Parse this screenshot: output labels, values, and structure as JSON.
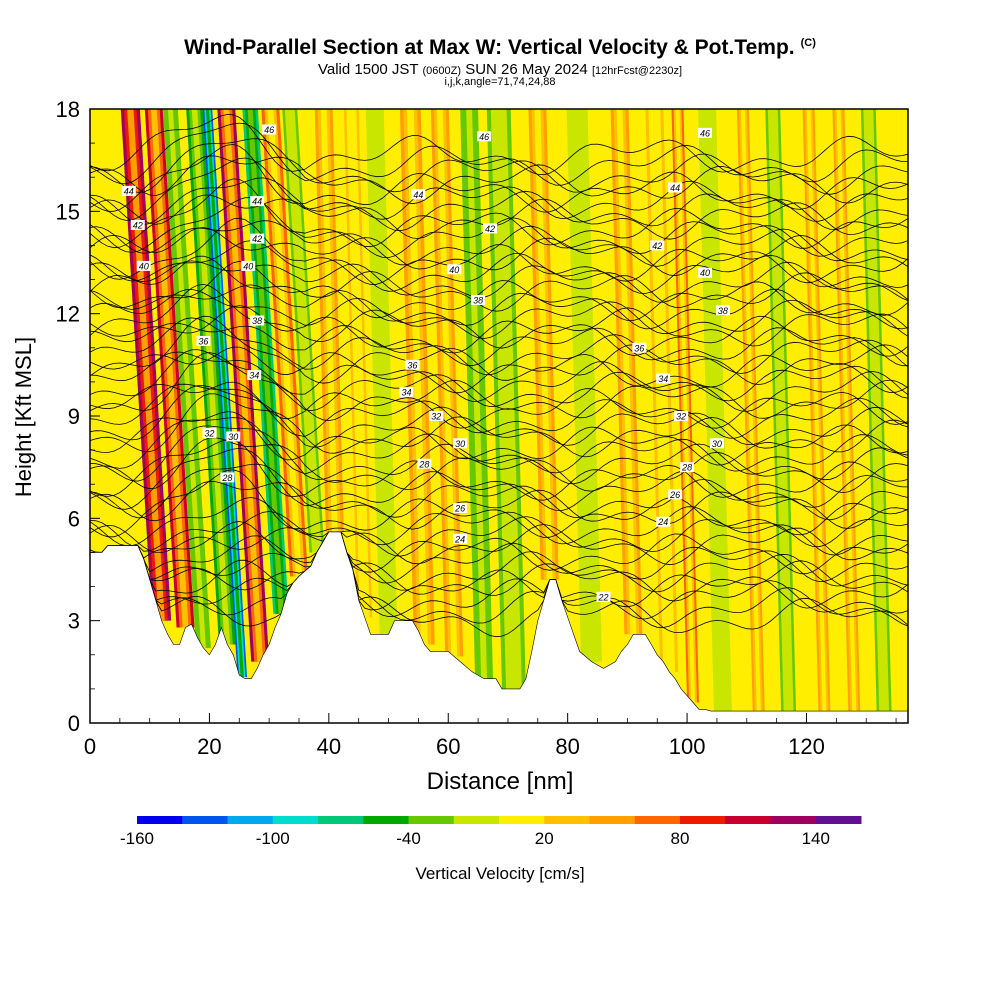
{
  "title": "Wind-Parallel Section at Max W: Vertical Velocity & Pot.Temp.",
  "copyright_mark": "(C)",
  "subtitle": {
    "valid_prefix": "Valid 1500 JST",
    "utc": "(0600Z)",
    "date": "SUN 26 May 2024",
    "forecast": "[12hrFcst@2230z]"
  },
  "indices": "i,j,k,angle=71,74,24,88",
  "chart_data": {
    "type": "heatmap",
    "xlabel": "Distance [nm]",
    "ylabel": "Height [Kft MSL]",
    "xlim": [
      0,
      137
    ],
    "ylim": [
      0,
      18
    ],
    "xticks": [
      0,
      20,
      40,
      60,
      80,
      100,
      120
    ],
    "yticks": [
      0,
      3,
      6,
      9,
      12,
      15,
      18
    ],
    "terrain_kft": [
      [
        0,
        5.0
      ],
      [
        2,
        5.0
      ],
      [
        3,
        5.2
      ],
      [
        8,
        5.2
      ],
      [
        9,
        4.8
      ],
      [
        10,
        4.2
      ],
      [
        11,
        3.6
      ],
      [
        12,
        3.0
      ],
      [
        13,
        2.6
      ],
      [
        14,
        2.3
      ],
      [
        15,
        2.3
      ],
      [
        16,
        2.8
      ],
      [
        17,
        2.9
      ],
      [
        18,
        2.5
      ],
      [
        19,
        2.2
      ],
      [
        20,
        2.0
      ],
      [
        21,
        2.3
      ],
      [
        22,
        2.8
      ],
      [
        23,
        2.3
      ],
      [
        24,
        2.0
      ],
      [
        25,
        1.4
      ],
      [
        26,
        1.3
      ],
      [
        27,
        1.3
      ],
      [
        28,
        1.6
      ],
      [
        29,
        2.0
      ],
      [
        30,
        2.3
      ],
      [
        31,
        2.8
      ],
      [
        32,
        3.2
      ],
      [
        33,
        3.8
      ],
      [
        34,
        4.1
      ],
      [
        35,
        4.3
      ],
      [
        37,
        4.6
      ],
      [
        38,
        5.0
      ],
      [
        39,
        5.3
      ],
      [
        40,
        5.6
      ],
      [
        42,
        5.6
      ],
      [
        43,
        5.0
      ],
      [
        44,
        4.5
      ],
      [
        45,
        3.6
      ],
      [
        46,
        3.1
      ],
      [
        47,
        2.6
      ],
      [
        50,
        2.6
      ],
      [
        51,
        3.0
      ],
      [
        54,
        3.0
      ],
      [
        55,
        2.7
      ],
      [
        56,
        2.3
      ],
      [
        57,
        2.1
      ],
      [
        60,
        2.1
      ],
      [
        62,
        1.8
      ],
      [
        64,
        1.5
      ],
      [
        66,
        1.3
      ],
      [
        68,
        1.3
      ],
      [
        69,
        1.0
      ],
      [
        72,
        1.0
      ],
      [
        73,
        1.3
      ],
      [
        74,
        2.1
      ],
      [
        75,
        3.0
      ],
      [
        76,
        3.6
      ],
      [
        77,
        4.2
      ],
      [
        78,
        4.2
      ],
      [
        79,
        3.6
      ],
      [
        80,
        3.1
      ],
      [
        81,
        2.6
      ],
      [
        82,
        2.1
      ],
      [
        84,
        1.8
      ],
      [
        86,
        1.6
      ],
      [
        88,
        1.8
      ],
      [
        89,
        2.1
      ],
      [
        90,
        2.3
      ],
      [
        91,
        2.6
      ],
      [
        93,
        2.6
      ],
      [
        94,
        2.3
      ],
      [
        95,
        2.0
      ],
      [
        96,
        1.8
      ],
      [
        97,
        1.5
      ],
      [
        98,
        1.3
      ],
      [
        99,
        1.0
      ],
      [
        100,
        0.8
      ],
      [
        101,
        0.6
      ],
      [
        102,
        0.4
      ],
      [
        103,
        0.4
      ],
      [
        104,
        0.35
      ],
      [
        137,
        0.35
      ]
    ],
    "velocity_bands": [
      {
        "x": 12,
        "w": 3.2,
        "v": 130
      },
      {
        "x": 16,
        "w": 3.0,
        "v": 110
      },
      {
        "x": 19,
        "w": 2.5,
        "v": -40
      },
      {
        "x": 23,
        "w": 2.8,
        "v": -60
      },
      {
        "x": 25.5,
        "w": 1.6,
        "v": -140
      },
      {
        "x": 28.5,
        "w": 3.0,
        "v": 120
      },
      {
        "x": 32,
        "w": 2.6,
        "v": -80
      },
      {
        "x": 35,
        "w": 3.0,
        "v": 60
      },
      {
        "x": 38,
        "w": 2.5,
        "v": -30
      },
      {
        "x": 41,
        "w": 3.0,
        "v": 50
      },
      {
        "x": 46,
        "w": 2.5,
        "v": 30
      },
      {
        "x": 50,
        "w": 3.0,
        "v": -20
      },
      {
        "x": 56,
        "w": 3.5,
        "v": 40
      },
      {
        "x": 61,
        "w": 3.0,
        "v": 50
      },
      {
        "x": 66,
        "w": 3.0,
        "v": -40
      },
      {
        "x": 71,
        "w": 4.0,
        "v": -30
      },
      {
        "x": 77,
        "w": 3.0,
        "v": 40
      },
      {
        "x": 84,
        "w": 3.5,
        "v": -20
      },
      {
        "x": 91,
        "w": 3.0,
        "v": 40
      },
      {
        "x": 97,
        "w": 3.0,
        "v": 30
      },
      {
        "x": 101,
        "w": 2.0,
        "v": 60
      },
      {
        "x": 106,
        "w": 3.0,
        "v": -20
      },
      {
        "x": 112,
        "w": 2.0,
        "v": 40
      },
      {
        "x": 117,
        "w": 2.5,
        "v": -30
      },
      {
        "x": 123,
        "w": 2.0,
        "v": 40
      },
      {
        "x": 128,
        "w": 2.0,
        "v": 40
      },
      {
        "x": 133,
        "w": 2.5,
        "v": -30
      }
    ],
    "theta_levels": [
      22,
      24,
      26,
      28,
      30,
      32,
      34,
      36,
      38,
      40,
      42,
      44,
      46
    ],
    "theta_labels": [
      {
        "text": "22",
        "x": 86,
        "y": 3.7
      },
      {
        "text": "24",
        "x": 62,
        "y": 5.4
      },
      {
        "text": "24",
        "x": 96,
        "y": 5.9
      },
      {
        "text": "26",
        "x": 62,
        "y": 6.3
      },
      {
        "text": "26",
        "x": 98,
        "y": 6.7
      },
      {
        "text": "28",
        "x": 23,
        "y": 7.2
      },
      {
        "text": "28",
        "x": 56,
        "y": 7.6
      },
      {
        "text": "28",
        "x": 100,
        "y": 7.5
      },
      {
        "text": "30",
        "x": 24,
        "y": 8.4
      },
      {
        "text": "30",
        "x": 62,
        "y": 8.2
      },
      {
        "text": "30",
        "x": 105,
        "y": 8.2
      },
      {
        "text": "32",
        "x": 20,
        "y": 8.5
      },
      {
        "text": "32",
        "x": 58,
        "y": 9.0
      },
      {
        "text": "32",
        "x": 99,
        "y": 9.0
      },
      {
        "text": "34",
        "x": 27.5,
        "y": 10.2
      },
      {
        "text": "34",
        "x": 53,
        "y": 9.7
      },
      {
        "text": "34",
        "x": 96,
        "y": 10.1
      },
      {
        "text": "36",
        "x": 19,
        "y": 11.2
      },
      {
        "text": "36",
        "x": 54,
        "y": 10.5
      },
      {
        "text": "36",
        "x": 92,
        "y": 11.0
      },
      {
        "text": "38",
        "x": 28,
        "y": 11.8
      },
      {
        "text": "38",
        "x": 65,
        "y": 12.4
      },
      {
        "text": "38",
        "x": 106,
        "y": 12.1
      },
      {
        "text": "40",
        "x": 9,
        "y": 13.4
      },
      {
        "text": "40",
        "x": 26.5,
        "y": 13.4
      },
      {
        "text": "40",
        "x": 61,
        "y": 13.3
      },
      {
        "text": "40",
        "x": 103,
        "y": 13.2
      },
      {
        "text": "42",
        "x": 8,
        "y": 14.6
      },
      {
        "text": "42",
        "x": 28,
        "y": 14.2
      },
      {
        "text": "42",
        "x": 67,
        "y": 14.5
      },
      {
        "text": "42",
        "x": 95,
        "y": 14.0
      },
      {
        "text": "44",
        "x": 6.5,
        "y": 15.6
      },
      {
        "text": "44",
        "x": 28,
        "y": 15.3
      },
      {
        "text": "44",
        "x": 55,
        "y": 15.5
      },
      {
        "text": "44",
        "x": 98,
        "y": 15.7
      },
      {
        "text": "46",
        "x": 66,
        "y": 17.2
      },
      {
        "text": "46",
        "x": 103,
        "y": 17.3
      },
      {
        "text": "46",
        "x": 30,
        "y": 17.4
      }
    ]
  },
  "colorbar": {
    "label": "Vertical Velocity [cm/s]",
    "ticks": [
      "-160",
      "-100",
      "-40",
      "20",
      "80",
      "140"
    ],
    "colors": [
      "#0000ee",
      "#0055ee",
      "#00a8ee",
      "#00ddcc",
      "#00c878",
      "#00a800",
      "#66c800",
      "#c8e600",
      "#ffee00",
      "#ffc000",
      "#ffa000",
      "#ff6600",
      "#ee1a00",
      "#c80030",
      "#a00060",
      "#601090"
    ]
  }
}
